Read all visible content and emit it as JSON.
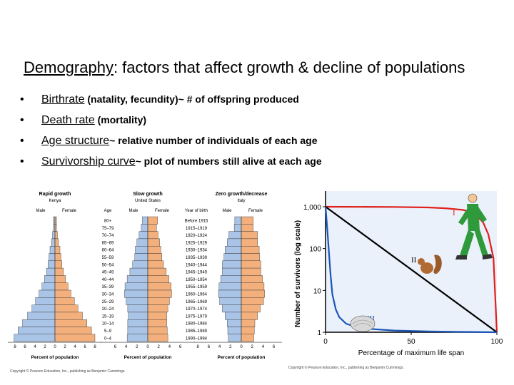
{
  "slide": {
    "title_term": "Demography",
    "title_rest": ": factors that affect growth & decline of populations",
    "bullets": [
      {
        "term": "Birthrate",
        "rest": " (natality, fecundity)~ # of offspring produced"
      },
      {
        "term": "Death rate",
        "rest": " (mortality)"
      },
      {
        "term": "Age structure",
        "rest": "~ relative number of individuals of each age"
      },
      {
        "term": "Survivorship curve",
        "rest": "~ plot of numbers still alive at each age"
      }
    ],
    "bullet_symbol": "•"
  },
  "pyramids": {
    "male_label": "Male",
    "female_label": "Female",
    "age_header": "Age",
    "year_header": "Year of birth",
    "x_title": "Percent of population",
    "x_ticks": [
      "8",
      "6",
      "4",
      "2",
      "0",
      "2",
      "4",
      "6",
      "8"
    ],
    "x_ticks_short": [
      "6",
      "4",
      "2",
      "0",
      "2",
      "4",
      "6"
    ],
    "colors": {
      "male": "#a9c4e6",
      "female": "#f3b07c"
    },
    "age_groups": [
      "80+",
      "75–79",
      "70–74",
      "65–69",
      "60–64",
      "55–59",
      "50–54",
      "45–49",
      "40–44",
      "35–39",
      "30–34",
      "25–29",
      "20–24",
      "15–19",
      "10–14",
      "5–9",
      "0–4"
    ],
    "birth_years": [
      "Before 1915",
      "1915–1919",
      "1920–1924",
      "1925–1929",
      "1930–1934",
      "1935–1939",
      "1940–1944",
      "1945–1949",
      "1950–1954",
      "1955–1959",
      "1960–1964",
      "1965–1969",
      "1970–1974",
      "1975–1979",
      "1980–1984",
      "1985–1989",
      "1990–1994"
    ],
    "charts": [
      {
        "title": "Rapid growth",
        "subtitle": "Kenya",
        "male": [
          0.3,
          0.3,
          0.5,
          0.7,
          1.0,
          1.2,
          1.4,
          1.7,
          2.1,
          2.6,
          3.2,
          3.9,
          4.6,
          5.5,
          6.5,
          7.4,
          8.2
        ],
        "female": [
          0.3,
          0.3,
          0.5,
          0.7,
          1.0,
          1.2,
          1.4,
          1.7,
          2.1,
          2.6,
          3.2,
          3.9,
          4.6,
          5.5,
          6.4,
          7.3,
          8.0
        ]
      },
      {
        "title": "Slow growth",
        "subtitle": "United States",
        "male": [
          1.0,
          1.2,
          1.6,
          2.0,
          2.3,
          2.4,
          2.8,
          3.3,
          3.8,
          4.2,
          4.3,
          4.0,
          3.7,
          3.6,
          3.7,
          3.7,
          3.8
        ],
        "female": [
          1.8,
          1.6,
          1.9,
          2.2,
          2.4,
          2.6,
          2.9,
          3.4,
          3.9,
          4.3,
          4.4,
          4.0,
          3.7,
          3.5,
          3.5,
          3.6,
          3.7
        ]
      },
      {
        "title": "Zero growth/decrease",
        "subtitle": "Italy",
        "male": [
          1.2,
          1.3,
          2.3,
          2.6,
          3.0,
          3.2,
          3.5,
          3.5,
          3.8,
          4.1,
          4.2,
          4.0,
          3.5,
          3.0,
          2.6,
          2.5,
          2.4
        ],
        "female": [
          2.2,
          2.2,
          3.0,
          3.0,
          3.3,
          3.4,
          3.6,
          3.6,
          3.9,
          4.2,
          4.3,
          4.1,
          3.5,
          3.0,
          2.5,
          2.4,
          2.3
        ]
      }
    ],
    "credit": "Copyright © Pearson Education, Inc., publishing as Benjamin Cummings."
  },
  "chart_data": {
    "type": "line",
    "xlabel": "Percentage of maximum life span",
    "ylabel": "Number of survivors (log scale)",
    "x_ticks": [
      0,
      50,
      100
    ],
    "y_ticks": [
      "1,000",
      "100",
      "10",
      "1"
    ],
    "xlim": [
      0,
      100
    ],
    "ylim": [
      1,
      1000
    ],
    "yscale": "log",
    "series": [
      {
        "name": "I",
        "color": "#e0201c",
        "x": [
          0,
          40,
          60,
          70,
          80,
          85,
          88,
          92,
          95,
          98,
          100
        ],
        "y": [
          1000,
          990,
          960,
          920,
          840,
          760,
          640,
          420,
          220,
          60,
          1
        ]
      },
      {
        "name": "II",
        "color": "#000000",
        "x": [
          0,
          100
        ],
        "y": [
          1000,
          1
        ]
      },
      {
        "name": "III",
        "color": "#1a55b8",
        "x": [
          0,
          1,
          2,
          3,
          4,
          6,
          8,
          12,
          20,
          40,
          60,
          80,
          100
        ],
        "y": [
          1000,
          300,
          80,
          22,
          8,
          3.5,
          2.3,
          1.6,
          1.25,
          1.1,
          1.05,
          1.02,
          1
        ]
      }
    ],
    "credit": "Copyright © Pearson Education, Inc., publishing as Benjamin Cummings."
  }
}
